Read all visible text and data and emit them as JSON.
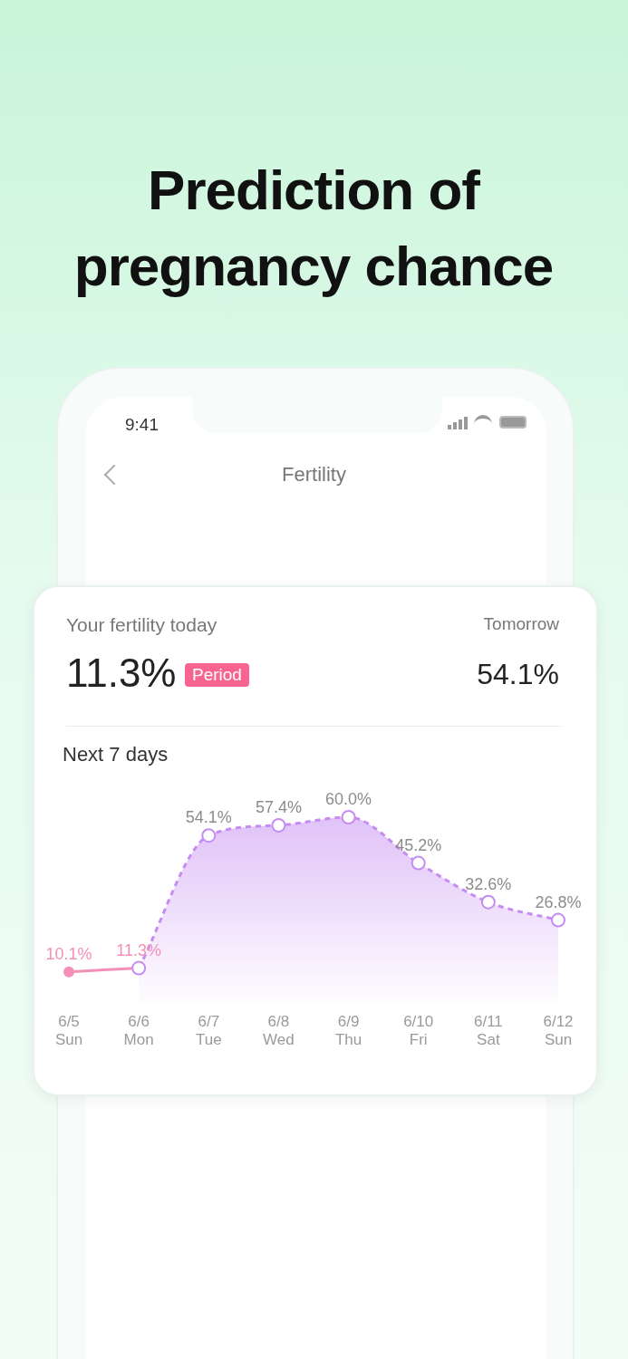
{
  "chart_data": [
    {
      "type": "other",
      "title": "Prediction of pregnancy chance",
      "annotations": [
        "9:41",
        "Fertility",
        "Your fertility today",
        "11.3%",
        "Period",
        "Tomorrow",
        "54.1%"
      ]
    },
    {
      "type": "line",
      "title": "Next 7 days",
      "categories": [
        "6/5\nSun",
        "6/6\nMon",
        "6/7\nTue",
        "6/8\nWed",
        "6/9\nThu",
        "6/10\nFri",
        "6/11\nSat",
        "6/12\nSun"
      ],
      "tick_labels": "x",
      "marker": "circle",
      "series": [
        {
          "type": "line",
          "color": "#f48fb8",
          "line_style": "solid",
          "values": [
            10.1,
            11.3,
            null,
            null,
            null,
            null,
            null,
            null
          ],
          "value_labels": [
            "10.1%",
            "11.3%",
            null,
            null,
            null,
            null,
            null,
            null
          ]
        },
        {
          "type": "area",
          "color": "#c58cf2",
          "line_style": "dashed",
          "values": [
            null,
            11.3,
            54.1,
            57.4,
            60.0,
            45.2,
            32.6,
            26.8
          ],
          "value_labels": [
            null,
            null,
            "54.1%",
            "57.4%",
            "60.0%",
            "45.2%",
            "32.6%",
            "26.8%"
          ]
        }
      ]
    }
  ]
}
